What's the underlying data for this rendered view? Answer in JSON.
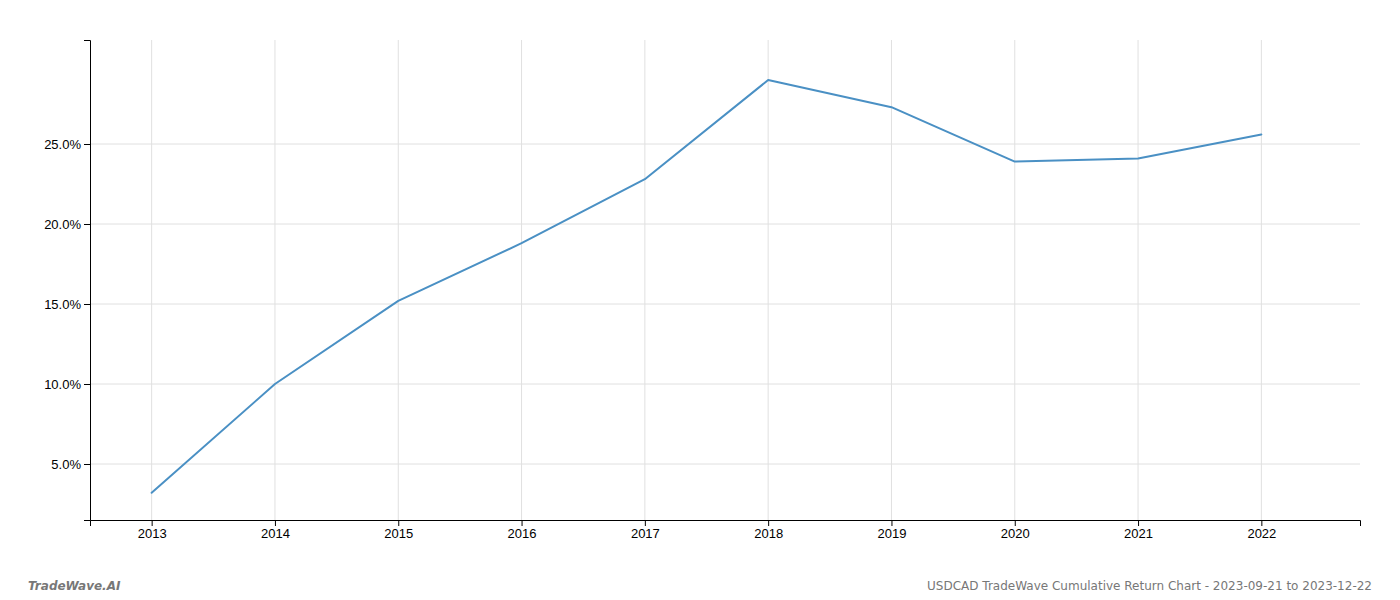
{
  "chart_data": {
    "type": "line",
    "x": [
      2013,
      2014,
      2015,
      2016,
      2017,
      2018,
      2019,
      2020,
      2021,
      2022
    ],
    "values": [
      3.2,
      10.0,
      15.2,
      18.8,
      22.8,
      29.0,
      27.3,
      23.9,
      24.1,
      25.6
    ],
    "color": "#4a90c4",
    "xlim": [
      2012.5,
      2022.8
    ],
    "xticks": [
      2013,
      2014,
      2015,
      2016,
      2017,
      2018,
      2019,
      2020,
      2021,
      2022
    ],
    "ylim": [
      1.5,
      31.5
    ],
    "yticks": [
      {
        "value": 5.0,
        "label": "5.0%"
      },
      {
        "value": 10.0,
        "label": "10.0%"
      },
      {
        "value": 15.0,
        "label": "15.0%"
      },
      {
        "value": 20.0,
        "label": "20.0%"
      },
      {
        "value": 25.0,
        "label": "25.0%"
      }
    ],
    "grid": true,
    "annotations": [
      "TradeWave.AI",
      "USDCAD TradeWave Cumulative Return Chart - 2023-09-21 to 2023-12-22"
    ]
  }
}
